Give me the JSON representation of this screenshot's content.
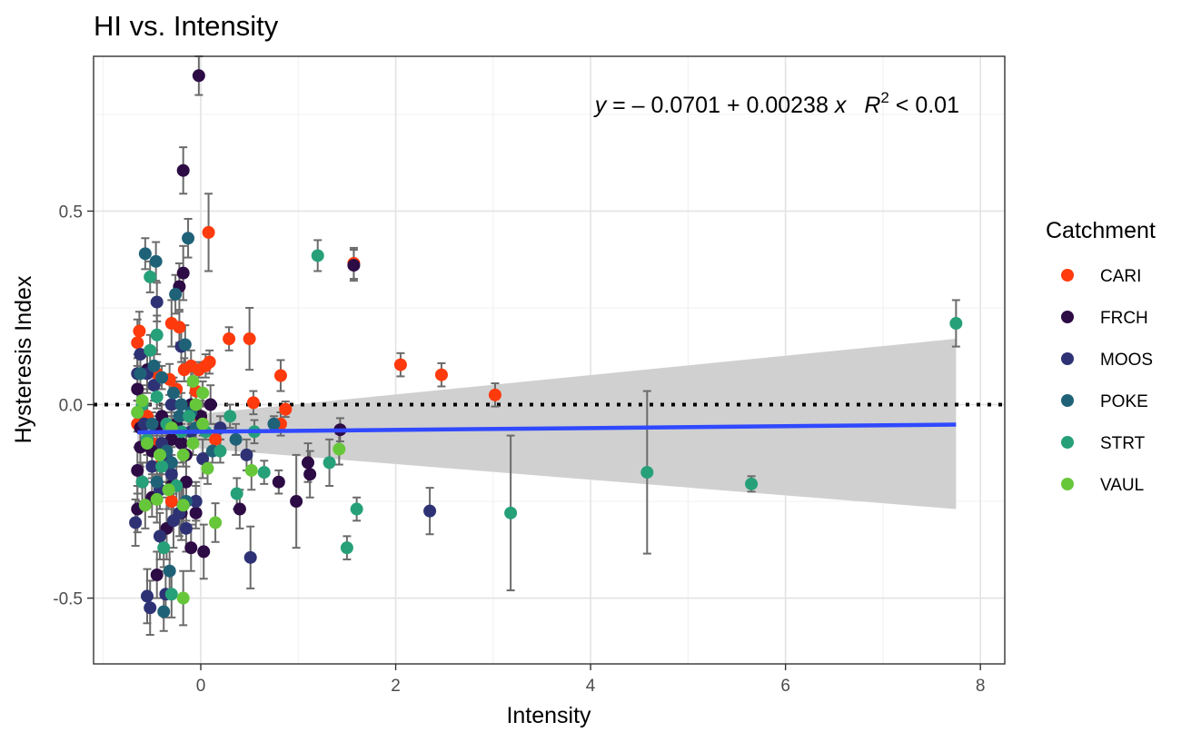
{
  "chart_data": {
    "type": "scatter",
    "title": "HI vs. Intensity",
    "xlabel": "Intensity",
    "ylabel": "Hysteresis Index",
    "xlim": [
      -1.1,
      8.25
    ],
    "ylim": [
      -0.67,
      0.9
    ],
    "x_ticks": [
      0,
      2,
      4,
      6,
      8
    ],
    "y_ticks": [
      -0.5,
      0.0,
      0.5
    ],
    "y_tick_labels": [
      "-0.5",
      "0.0",
      "0.5"
    ],
    "grid": true,
    "reference_line": {
      "y": 0,
      "style": "dotted"
    },
    "legend": {
      "title": "Catchment",
      "position": "right"
    },
    "regression": {
      "intercept": -0.0701,
      "slope": 0.00238,
      "x_range": [
        -0.65,
        7.75
      ],
      "ci_left": [
        -0.1,
        -0.04
      ],
      "ci_right": [
        -0.27,
        0.17
      ],
      "color": "#3049ff",
      "ribbon_color": "#d0d0d0",
      "label_parts": {
        "y": "y",
        "eq": " = – 0.0701 + 0.00238 ",
        "x": "x",
        "r": "R",
        "sup": "2",
        "tail": " < 0.01"
      }
    },
    "series": [
      {
        "name": "CARI",
        "color": "#ff3a0d",
        "points": [
          [
            0.08,
            0.445,
            0.1
          ],
          [
            1.57,
            0.365,
            0.04
          ],
          [
            -0.65,
            0.16,
            0.06
          ],
          [
            -0.63,
            0.19,
            0.05
          ],
          [
            -0.3,
            0.21,
            0.06
          ],
          [
            -0.22,
            0.2,
            0.04
          ],
          [
            0.29,
            0.17,
            0.03
          ],
          [
            0.5,
            0.17,
            0.08
          ],
          [
            -0.1,
            0.1,
            0.04
          ],
          [
            0.05,
            0.1,
            0.03
          ],
          [
            0.09,
            0.11,
            0.03
          ],
          [
            -0.02,
            0.09,
            0.02
          ],
          [
            -0.17,
            0.09,
            0.03
          ],
          [
            0.82,
            0.075,
            0.04
          ],
          [
            2.05,
            0.103,
            0.03
          ],
          [
            2.47,
            0.077,
            0.03
          ],
          [
            3.02,
            0.025,
            0.03
          ],
          [
            0.54,
            0.005,
            0.03
          ],
          [
            0.87,
            -0.012,
            0.02
          ],
          [
            -0.32,
            0.065,
            0.04
          ],
          [
            -0.45,
            0.08,
            0.03
          ],
          [
            -0.05,
            0.035,
            0.05
          ],
          [
            -0.6,
            0.0,
            0.04
          ],
          [
            -0.55,
            -0.03,
            0.03
          ],
          [
            -0.0,
            -0.035,
            0.03
          ],
          [
            0.82,
            -0.05,
            0.03
          ],
          [
            0.15,
            -0.09,
            0.04
          ],
          [
            -0.3,
            -0.25,
            0.05
          ],
          [
            -0.4,
            -0.15,
            0.03
          ],
          [
            -0.25,
            0.04,
            0.02
          ],
          [
            -0.5,
            -0.1,
            0.02
          ],
          [
            -0.65,
            -0.05,
            0.02
          ]
        ]
      },
      {
        "name": "FRCH",
        "color": "#2d0b45",
        "points": [
          [
            -0.02,
            0.85,
            0.05
          ],
          [
            -0.18,
            0.605,
            0.06
          ],
          [
            1.57,
            0.36,
            0.04
          ],
          [
            -0.18,
            0.34,
            0.07
          ],
          [
            -0.22,
            0.305,
            0.06
          ],
          [
            -0.1,
            0.0,
            0.05
          ],
          [
            0.1,
            0.0,
            0.05
          ],
          [
            -0.65,
            0.04,
            0.08
          ],
          [
            -0.62,
            -0.06,
            0.05
          ],
          [
            -0.5,
            -0.12,
            0.06
          ],
          [
            -0.45,
            -0.06,
            0.03
          ],
          [
            -0.55,
            0.09,
            0.05
          ],
          [
            -0.3,
            -0.09,
            0.04
          ],
          [
            -0.2,
            -0.1,
            0.05
          ],
          [
            -0.15,
            -0.13,
            0.07
          ],
          [
            -0.05,
            -0.28,
            0.04
          ],
          [
            -0.05,
            -0.25,
            0.05
          ],
          [
            -0.1,
            -0.37,
            0.06
          ],
          [
            0.03,
            -0.38,
            0.07
          ],
          [
            -0.35,
            -0.32,
            0.08
          ],
          [
            -0.45,
            -0.44,
            0.06
          ],
          [
            -0.65,
            -0.17,
            0.06
          ],
          [
            -0.65,
            -0.27,
            0.06
          ],
          [
            -0.62,
            -0.11,
            0.05
          ],
          [
            0.4,
            -0.27,
            0.05
          ],
          [
            0.8,
            -0.2,
            0.03
          ],
          [
            1.1,
            -0.15,
            0.05
          ],
          [
            1.12,
            -0.18,
            0.06
          ],
          [
            0.98,
            -0.25,
            0.12
          ],
          [
            1.43,
            -0.065,
            0.03
          ],
          [
            -0.2,
            -0.28,
            0.07
          ],
          [
            -0.3,
            -0.21,
            0.05
          ],
          [
            -0.15,
            -0.2,
            0.04
          ],
          [
            -0.4,
            -0.03,
            0.03
          ],
          [
            -0.25,
            -0.05,
            0.03
          ],
          [
            0.0,
            -0.03,
            0.04
          ],
          [
            -0.35,
            -0.15,
            0.05
          ],
          [
            -0.5,
            -0.24,
            0.05
          ]
        ]
      },
      {
        "name": "MOOS",
        "color": "#2e3275",
        "points": [
          [
            -0.45,
            0.265,
            0.05
          ],
          [
            -0.62,
            0.13,
            0.05
          ],
          [
            -0.55,
            0.08,
            0.05
          ],
          [
            -0.48,
            0.05,
            0.04
          ],
          [
            -0.4,
            -0.1,
            0.05
          ],
          [
            -0.35,
            -0.14,
            0.06
          ],
          [
            -0.3,
            -0.18,
            0.04
          ],
          [
            -0.22,
            -0.28,
            0.06
          ],
          [
            -0.18,
            -0.26,
            0.06
          ],
          [
            -0.05,
            -0.25,
            0.04
          ],
          [
            0.02,
            -0.14,
            0.05
          ],
          [
            0.47,
            -0.13,
            0.04
          ],
          [
            0.51,
            -0.395,
            0.08
          ],
          [
            2.35,
            -0.275,
            0.06
          ],
          [
            -0.42,
            -0.34,
            0.06
          ],
          [
            -0.36,
            -0.49,
            0.06
          ],
          [
            -0.55,
            -0.495,
            0.07
          ],
          [
            -0.52,
            -0.525,
            0.07
          ],
          [
            -0.67,
            -0.305,
            0.06
          ],
          [
            -0.6,
            -0.2,
            0.05
          ],
          [
            -0.5,
            -0.16,
            0.04
          ],
          [
            -0.42,
            -0.22,
            0.05
          ],
          [
            -0.28,
            -0.3,
            0.07
          ],
          [
            -0.1,
            -0.07,
            0.03
          ],
          [
            0.2,
            -0.06,
            0.03
          ],
          [
            -0.65,
            0.08,
            0.05
          ],
          [
            -0.3,
            0.0,
            0.03
          ],
          [
            -0.2,
            0.15,
            0.04
          ],
          [
            -0.58,
            -0.05,
            0.04
          ],
          [
            -0.15,
            -0.32,
            0.06
          ]
        ]
      },
      {
        "name": "POKE",
        "color": "#1f6278",
        "points": [
          [
            -0.57,
            0.39,
            0.04
          ],
          [
            -0.46,
            0.37,
            0.05
          ],
          [
            -0.13,
            0.43,
            0.05
          ],
          [
            -0.26,
            0.285,
            0.05
          ],
          [
            -0.16,
            0.155,
            0.05
          ],
          [
            -0.48,
            0.1,
            0.04
          ],
          [
            -0.62,
            0.08,
            0.04
          ],
          [
            -0.4,
            0.07,
            0.03
          ],
          [
            -0.28,
            0.03,
            0.04
          ],
          [
            -0.2,
            0.0,
            0.03
          ],
          [
            -0.1,
            -0.02,
            0.03
          ],
          [
            -0.35,
            -0.12,
            0.05
          ],
          [
            -0.45,
            -0.2,
            0.04
          ],
          [
            -0.55,
            -0.1,
            0.03
          ],
          [
            -0.32,
            -0.43,
            0.05
          ],
          [
            -0.38,
            -0.535,
            0.05
          ],
          [
            0.36,
            -0.09,
            0.04
          ],
          [
            0.12,
            -0.12,
            0.03
          ],
          [
            0.75,
            -0.05,
            0.02
          ],
          [
            -0.22,
            -0.03,
            0.03
          ],
          [
            -0.05,
            -0.06,
            0.03
          ],
          [
            -0.5,
            -0.05,
            0.03
          ],
          [
            -0.65,
            -0.02,
            0.03
          ],
          [
            -0.3,
            -0.15,
            0.04
          ],
          [
            -0.15,
            -0.25,
            0.05
          ]
        ]
      },
      {
        "name": "STRT",
        "color": "#26a079",
        "points": [
          [
            1.2,
            0.385,
            0.04
          ],
          [
            -0.52,
            0.33,
            0.04
          ],
          [
            -0.45,
            0.18,
            0.05
          ],
          [
            -0.52,
            0.14,
            0.04
          ],
          [
            7.75,
            0.21,
            0.06
          ],
          [
            0.3,
            -0.03,
            0.03
          ],
          [
            -0.6,
            -0.2,
            0.05
          ],
          [
            0.37,
            -0.23,
            0.04
          ],
          [
            0.65,
            -0.175,
            0.03
          ],
          [
            1.32,
            -0.15,
            0.06
          ],
          [
            1.6,
            -0.27,
            0.03
          ],
          [
            1.5,
            -0.37,
            0.03
          ],
          [
            3.18,
            -0.28,
            0.2
          ],
          [
            4.58,
            -0.175,
            0.21
          ],
          [
            5.65,
            -0.205,
            0.02
          ],
          [
            -0.38,
            -0.37,
            0.05
          ],
          [
            -0.3,
            -0.49,
            0.06
          ],
          [
            -0.4,
            -0.16,
            0.04
          ],
          [
            -0.25,
            -0.21,
            0.05
          ],
          [
            0.2,
            -0.12,
            0.03
          ],
          [
            0.55,
            -0.07,
            0.03
          ],
          [
            -0.55,
            -0.09,
            0.03
          ],
          [
            -0.12,
            -0.03,
            0.03
          ],
          [
            -0.35,
            -0.05,
            0.03
          ],
          [
            -0.2,
            -0.07,
            0.03
          ],
          [
            0.05,
            -0.07,
            0.02
          ],
          [
            -0.45,
            0.02,
            0.03
          ],
          [
            -0.6,
            0.0,
            0.03
          ]
        ]
      },
      {
        "name": "VAUL",
        "color": "#67c73a",
        "points": [
          [
            -0.08,
            0.06,
            0.03
          ],
          [
            0.02,
            0.03,
            0.03
          ],
          [
            -0.05,
            0.0,
            0.03
          ],
          [
            -0.6,
            0.01,
            0.04
          ],
          [
            -0.55,
            -0.1,
            0.05
          ],
          [
            -0.42,
            -0.13,
            0.05
          ],
          [
            -0.57,
            -0.26,
            0.06
          ],
          [
            -0.45,
            -0.245,
            0.06
          ],
          [
            -0.18,
            -0.26,
            0.05
          ],
          [
            -0.18,
            -0.5,
            0.07
          ],
          [
            0.07,
            -0.165,
            0.04
          ],
          [
            0.15,
            -0.305,
            0.05
          ],
          [
            0.52,
            -0.17,
            0.05
          ],
          [
            1.42,
            -0.115,
            0.04
          ],
          [
            -0.33,
            -0.22,
            0.05
          ],
          [
            -0.08,
            -0.1,
            0.03
          ],
          [
            -0.18,
            -0.13,
            0.03
          ],
          [
            0.02,
            -0.05,
            0.03
          ],
          [
            -0.3,
            -0.06,
            0.03
          ],
          [
            -0.65,
            -0.02,
            0.03
          ]
        ]
      }
    ]
  }
}
